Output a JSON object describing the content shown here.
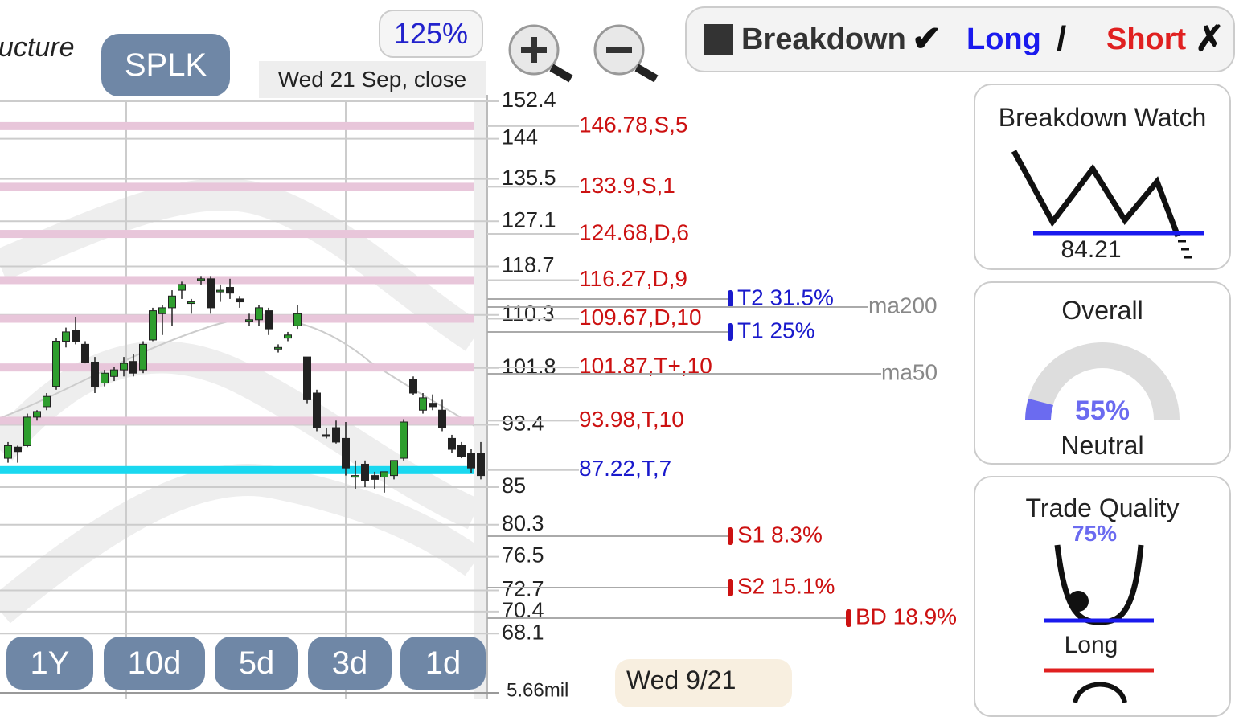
{
  "header": {
    "title_fragment": "ucture",
    "symbol": "SPLK",
    "zoom": "125%",
    "date": "Wed 21 Sep, close"
  },
  "toolbar": {
    "breakdown": "Breakdown",
    "long": "Long",
    "short": "Short"
  },
  "price_axis": {
    "ticks": [
      152.4,
      144,
      135.5,
      127.1,
      118.7,
      110.3,
      101.8,
      93.4,
      85,
      80.3,
      76.5,
      72.7,
      70.4,
      68.1
    ],
    "volume": "5.66mil"
  },
  "levels": [
    "146.78,S,5",
    "133.9,S,1",
    "124.68,D,6",
    "116.27,D,9",
    "109.67,D,10",
    "101.87,T+,10",
    "93.98,T,10",
    "87.22,T,7"
  ],
  "targets": [
    "T2 31.5%",
    "T1 25%",
    "S1 8.3%",
    "S2 15.1%",
    "BD 18.9%"
  ],
  "moving_averages": [
    "ma200",
    "ma50"
  ],
  "candles": [
    {
      "o": 88.8,
      "h": 91.0,
      "l": 88.2,
      "c": 90.5
    },
    {
      "o": 90.3,
      "h": 90.5,
      "l": 88.2,
      "c": 89.7
    },
    {
      "o": 90.5,
      "h": 95.0,
      "l": 90.3,
      "c": 94.5
    },
    {
      "o": 94.5,
      "h": 95.5,
      "l": 94.0,
      "c": 95.3
    },
    {
      "o": 96.0,
      "h": 98.0,
      "l": 95.5,
      "c": 97.5
    },
    {
      "o": 99.0,
      "h": 106.5,
      "l": 98.5,
      "c": 106.0
    },
    {
      "o": 106.0,
      "h": 108.2,
      "l": 105.0,
      "c": 107.5
    },
    {
      "o": 107.8,
      "h": 110.0,
      "l": 105.5,
      "c": 106.0
    },
    {
      "o": 105.5,
      "h": 106.0,
      "l": 102.5,
      "c": 102.7
    },
    {
      "o": 102.7,
      "h": 103.5,
      "l": 98.0,
      "c": 99.0
    },
    {
      "o": 99.5,
      "h": 101.5,
      "l": 99.0,
      "c": 101.0
    },
    {
      "o": 100.5,
      "h": 102.0,
      "l": 99.8,
      "c": 101.5
    },
    {
      "o": 101.5,
      "h": 103.5,
      "l": 100.5,
      "c": 102.5
    },
    {
      "o": 102.8,
      "h": 104.0,
      "l": 100.5,
      "c": 101.0
    },
    {
      "o": 101.5,
      "h": 106.0,
      "l": 101.0,
      "c": 105.5
    },
    {
      "o": 106.2,
      "h": 111.5,
      "l": 106.0,
      "c": 111.0
    },
    {
      "o": 110.5,
      "h": 112.0,
      "l": 107.0,
      "c": 111.5
    },
    {
      "o": 111.5,
      "h": 114.5,
      "l": 108.5,
      "c": 113.5
    },
    {
      "o": 114.5,
      "h": 116.0,
      "l": 113.0,
      "c": 115.5
    },
    {
      "o": 112.4,
      "h": 113.0,
      "l": 110.5,
      "c": 112.5
    },
    {
      "o": 116.4,
      "h": 117.0,
      "l": 115.5,
      "c": 116.5
    },
    {
      "o": 116.5,
      "h": 117.0,
      "l": 110.5,
      "c": 111.5
    },
    {
      "o": 114.4,
      "h": 115.5,
      "l": 112.5,
      "c": 114.5
    },
    {
      "o": 115.0,
      "h": 116.5,
      "l": 113.0,
      "c": 114.0
    },
    {
      "o": 113.0,
      "h": 113.5,
      "l": 111.5,
      "c": 112.5
    },
    {
      "o": 109.4,
      "h": 110.5,
      "l": 108.5,
      "c": 109.5
    },
    {
      "o": 109.5,
      "h": 112.0,
      "l": 108.5,
      "c": 111.5
    },
    {
      "o": 111.0,
      "h": 111.5,
      "l": 107.0,
      "c": 108.0
    },
    {
      "o": 104.9,
      "h": 105.5,
      "l": 104.2,
      "c": 105.0
    },
    {
      "o": 106.5,
      "h": 107.5,
      "l": 106.0,
      "c": 107.0
    },
    {
      "o": 108.5,
      "h": 112.0,
      "l": 108.0,
      "c": 110.5
    },
    {
      "o": 103.5,
      "h": 103.5,
      "l": 96.5,
      "c": 97.0
    },
    {
      "o": 98.0,
      "h": 98.5,
      "l": 92.5,
      "c": 93.0
    },
    {
      "o": 92.0,
      "h": 93.0,
      "l": 91.5,
      "c": 91.8
    },
    {
      "o": 93.0,
      "h": 94.0,
      "l": 90.8,
      "c": 91.0
    },
    {
      "o": 91.5,
      "h": 93.8,
      "l": 86.5,
      "c": 87.5
    },
    {
      "o": 86.4,
      "h": 88.5,
      "l": 84.8,
      "c": 86.5
    },
    {
      "o": 88.0,
      "h": 88.5,
      "l": 85.0,
      "c": 85.8
    },
    {
      "o": 86.5,
      "h": 87.0,
      "l": 84.8,
      "c": 86.0
    },
    {
      "o": 86.3,
      "h": 87.0,
      "l": 84.3,
      "c": 87.0
    },
    {
      "o": 86.5,
      "h": 88.5,
      "l": 86.0,
      "c": 88.5
    },
    {
      "o": 88.8,
      "h": 94.2,
      "l": 88.5,
      "c": 93.8
    },
    {
      "o": 100.0,
      "h": 100.5,
      "l": 97.7,
      "c": 98.0
    },
    {
      "o": 95.5,
      "h": 98.0,
      "l": 95.0,
      "c": 97.3
    },
    {
      "o": 96.5,
      "h": 97.8,
      "l": 95.5,
      "c": 96.0
    },
    {
      "o": 95.5,
      "h": 97.0,
      "l": 92.5,
      "c": 93.0
    },
    {
      "o": 91.5,
      "h": 92.0,
      "l": 89.5,
      "c": 90.0
    },
    {
      "o": 90.5,
      "h": 91.0,
      "l": 88.8,
      "c": 89.0
    },
    {
      "o": 89.5,
      "h": 90.0,
      "l": 86.8,
      "c": 87.5
    },
    {
      "o": 89.5,
      "h": 91.0,
      "l": 86.0,
      "c": 86.5
    }
  ],
  "range_buttons": [
    "1Y",
    "10d",
    "5d",
    "3d",
    "1d"
  ],
  "date_box": "Wed 9/21",
  "panels": {
    "breakdown_watch": {
      "title": "Breakdown Watch",
      "value": "84.21"
    },
    "overall": {
      "title": "Overall",
      "value": "55%",
      "label": "Neutral"
    },
    "trade_quality": {
      "title": "Trade Quality",
      "value": "75%",
      "label": "Long"
    }
  }
}
